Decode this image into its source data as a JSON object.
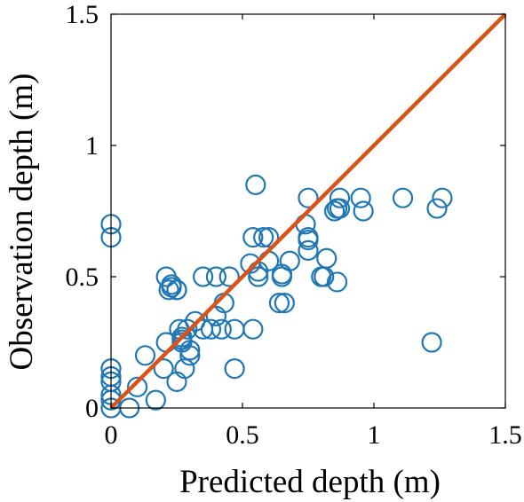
{
  "chart_data": {
    "type": "scatter",
    "xlabel": "Predicted depth (m)",
    "ylabel": "Observation depth (m)",
    "xlim": [
      0,
      1.5
    ],
    "ylim": [
      0,
      1.5
    ],
    "xticks": [
      0,
      0.5,
      1,
      1.5
    ],
    "xtick_labels": [
      "0",
      "0.5",
      "1",
      "1.5"
    ],
    "yticks": [
      0,
      0.5,
      1,
      1.5
    ],
    "ytick_labels": [
      "0",
      "0.5",
      "1",
      "1.5"
    ],
    "grid": false,
    "colors": {
      "points": "#1f77b4",
      "line": "#d95319",
      "axes": "#000000"
    },
    "series": [
      {
        "type": "scatter",
        "marker": "open-circle",
        "x": [
          0,
          0,
          0,
          0,
          0,
          0,
          0,
          0,
          0.07,
          0.1,
          0.13,
          0.17,
          0.2,
          0.21,
          0.21,
          0.22,
          0.23,
          0.23,
          0.25,
          0.25,
          0.25,
          0.26,
          0.27,
          0.27,
          0.27,
          0.28,
          0.29,
          0.3,
          0.3,
          0.32,
          0.35,
          0.35,
          0.38,
          0.4,
          0.4,
          0.42,
          0.43,
          0.45,
          0.47,
          0.47,
          0.53,
          0.54,
          0.54,
          0.55,
          0.56,
          0.56,
          0.58,
          0.6,
          0.6,
          0.64,
          0.65,
          0.65,
          0.66,
          0.68,
          0.74,
          0.75,
          0.75,
          0.75,
          0.75,
          0.8,
          0.81,
          0.82,
          0.85,
          0.86,
          0.86,
          0.87,
          0.87,
          0.95,
          0.96,
          1.11,
          1.22,
          1.24,
          1.26
        ],
        "y": [
          0.7,
          0.65,
          0.15,
          0.12,
          0.1,
          0.05,
          0.03,
          0.0,
          0.0,
          0.08,
          0.2,
          0.03,
          0.15,
          0.25,
          0.5,
          0.45,
          0.46,
          0.47,
          0.45,
          0.45,
          0.1,
          0.3,
          0.25,
          0.26,
          0.27,
          0.15,
          0.3,
          0.2,
          0.22,
          0.33,
          0.5,
          0.3,
          0.3,
          0.35,
          0.5,
          0.3,
          0.4,
          0.5,
          0.3,
          0.15,
          0.55,
          0.65,
          0.3,
          0.85,
          0.5,
          0.52,
          0.65,
          0.65,
          0.56,
          0.4,
          0.5,
          0.51,
          0.4,
          0.56,
          0.7,
          0.65,
          0.8,
          0.64,
          0.6,
          0.5,
          0.5,
          0.57,
          0.75,
          0.76,
          0.48,
          0.8,
          0.76,
          0.8,
          0.75,
          0.8,
          0.25,
          0.76,
          0.8
        ]
      },
      {
        "type": "line",
        "x": [
          0,
          1.5
        ],
        "y": [
          0,
          1.5
        ]
      }
    ]
  }
}
